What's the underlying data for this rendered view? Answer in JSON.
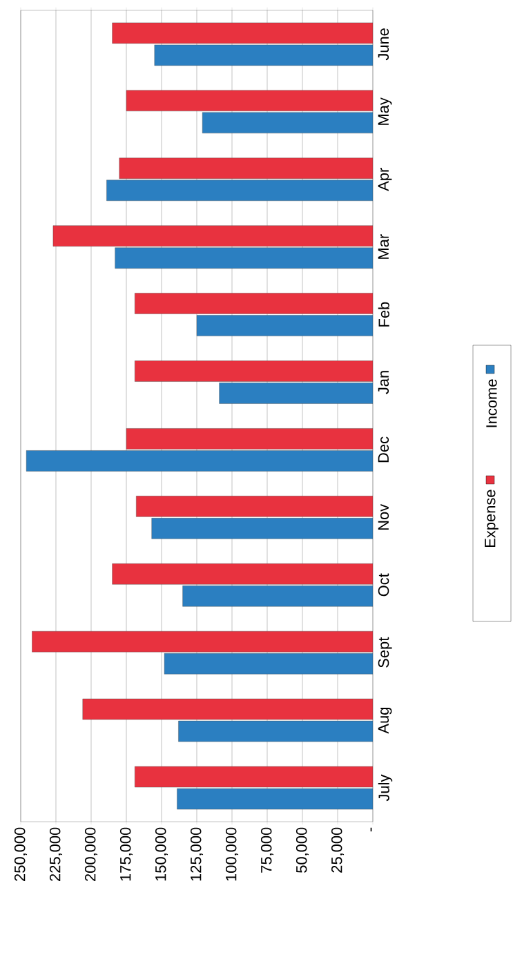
{
  "chart_data": {
    "type": "bar",
    "orientation": "horizontal",
    "categories": [
      "June",
      "May",
      "Apr",
      "Mar",
      "Feb",
      "Jan",
      "Dec",
      "Nov",
      "Oct",
      "Sept",
      "Aug",
      "July"
    ],
    "series": [
      {
        "name": "Income",
        "color": "#2b7fc1",
        "values": [
          155000,
          121000,
          189000,
          183000,
          125000,
          109000,
          246000,
          157000,
          135000,
          148000,
          138000,
          139000
        ]
      },
      {
        "name": "Expense",
        "color": "#e8323f",
        "values": [
          185000,
          175000,
          180000,
          227000,
          169000,
          169000,
          175000,
          168000,
          185000,
          242000,
          206000,
          169000
        ]
      }
    ],
    "xlim": [
      250000,
      0
    ],
    "xticks": [
      {
        "value": 0,
        "label": "-"
      },
      {
        "value": 25000,
        "label": "25,000"
      },
      {
        "value": 50000,
        "label": "50,000"
      },
      {
        "value": 75000,
        "label": "75,000"
      },
      {
        "value": 100000,
        "label": "100,000"
      },
      {
        "value": 125000,
        "label": "125,000"
      },
      {
        "value": 150000,
        "label": "150,000"
      },
      {
        "value": 175000,
        "label": "175,000"
      },
      {
        "value": 200000,
        "label": "200,000"
      },
      {
        "value": 225000,
        "label": "225,000"
      },
      {
        "value": 250000,
        "label": "250,000"
      }
    ],
    "grid": "x",
    "legend": "right"
  }
}
